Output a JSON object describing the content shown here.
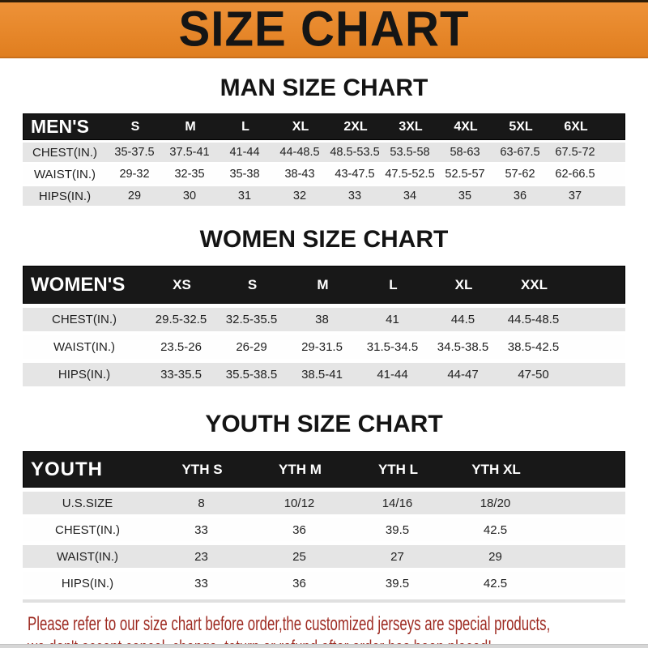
{
  "banner": {
    "title": "SIZE CHART",
    "bg_color": "#E8872C",
    "text_color": "#151515"
  },
  "sections": [
    {
      "id": "men",
      "heading": "MAN SIZE CHART",
      "header_label": "MEN'S",
      "columns": [
        "S",
        "M",
        "L",
        "XL",
        "2XL",
        "3XL",
        "4XL",
        "5XL",
        "6XL"
      ],
      "rows": [
        {
          "label": "CHEST(IN.)",
          "values": [
            "35-37.5",
            "37.5-41",
            "41-44",
            "44-48.5",
            "48.5-53.5",
            "53.5-58",
            "58-63",
            "63-67.5",
            "67.5-72"
          ]
        },
        {
          "label": "WAIST(IN.)",
          "values": [
            "29-32",
            "32-35",
            "35-38",
            "38-43",
            "43-47.5",
            "47.5-52.5",
            "52.5-57",
            "57-62",
            "62-66.5"
          ]
        },
        {
          "label": "HIPS(IN.)",
          "values": [
            "29",
            "30",
            "31",
            "32",
            "33",
            "34",
            "35",
            "36",
            "37"
          ]
        }
      ]
    },
    {
      "id": "women",
      "heading": "WOMEN SIZE CHART",
      "header_label": "WOMEN'S",
      "columns": [
        "XS",
        "S",
        "M",
        "L",
        "XL",
        "XXL"
      ],
      "rows": [
        {
          "label": "CHEST(IN.)",
          "values": [
            "29.5-32.5",
            "32.5-35.5",
            "38",
            "41",
            "44.5",
            "44.5-48.5"
          ]
        },
        {
          "label": "WAIST(IN.)",
          "values": [
            "23.5-26",
            "26-29",
            "29-31.5",
            "31.5-34.5",
            "34.5-38.5",
            "38.5-42.5"
          ]
        },
        {
          "label": "HIPS(IN.)",
          "values": [
            "33-35.5",
            "35.5-38.5",
            "38.5-41",
            "41-44",
            "44-47",
            "47-50"
          ]
        }
      ]
    },
    {
      "id": "youth",
      "heading": "YOUTH SIZE CHART",
      "header_label": "YOUTH",
      "columns": [
        "YTH S",
        "YTH M",
        "YTH L",
        "YTH XL"
      ],
      "rows": [
        {
          "label": "U.S.SIZE",
          "values": [
            "8",
            "10/12",
            "14/16",
            "18/20"
          ]
        },
        {
          "label": "CHEST(IN.)",
          "values": [
            "33",
            "36",
            "39.5",
            "42.5"
          ]
        },
        {
          "label": "WAIST(IN.)",
          "values": [
            "23",
            "25",
            "27",
            "29"
          ]
        },
        {
          "label": "HIPS(IN.)",
          "values": [
            "33",
            "36",
            "39.5",
            "42.5"
          ]
        }
      ]
    }
  ],
  "footer": {
    "text_color": "#9E2B22",
    "lines": [
      "Please refer to our size chart before order,the customized jerseys are special products,",
      "we don't accept cancel, change, teturn or refund after order has been placed!"
    ]
  }
}
